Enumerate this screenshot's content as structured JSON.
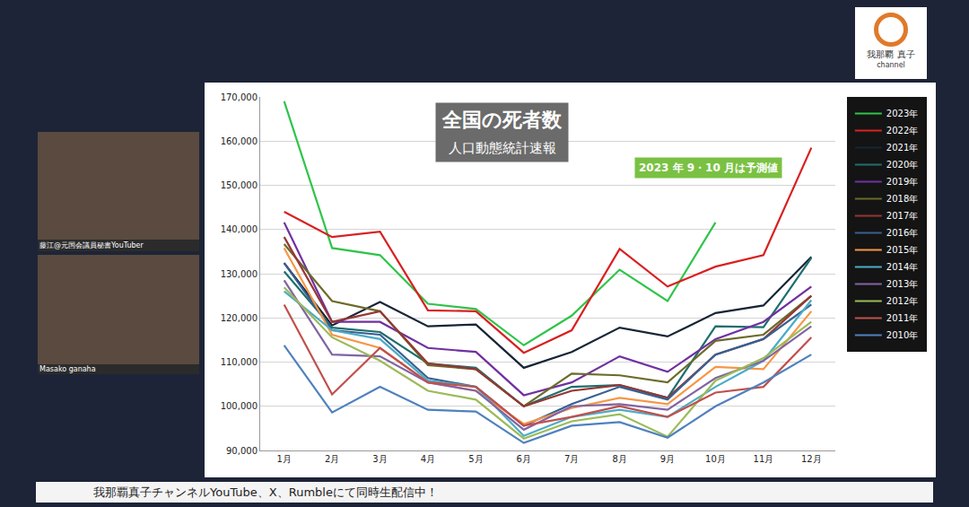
{
  "chart_data": {
    "type": "line",
    "title": "全国の死者数",
    "subtitle": "人口動態統計速報",
    "annotations": [
      "2023 年 9・10 月は予測値"
    ],
    "categories": [
      "1月",
      "2月",
      "3月",
      "4月",
      "5月",
      "6月",
      "7月",
      "8月",
      "9月",
      "10月",
      "11月",
      "12月"
    ],
    "series": [
      {
        "name": "2023年",
        "color": "#2fc44a",
        "values": [
          169000,
          135800,
          134200,
          123200,
          122000,
          113800,
          120500,
          130900,
          123800,
          141600,
          null,
          null
        ]
      },
      {
        "name": "2022年",
        "color": "#d92020",
        "values": [
          144000,
          138300,
          139500,
          121700,
          121500,
          112100,
          117200,
          135600,
          127100,
          131600,
          134200,
          158500
        ]
      },
      {
        "name": "2021年",
        "color": "#172536",
        "values": [
          132400,
          118300,
          123600,
          118100,
          118500,
          108700,
          112300,
          117800,
          115800,
          121100,
          122800,
          133800
        ]
      },
      {
        "name": "2020年",
        "color": "#1f6e6e",
        "values": [
          130500,
          117800,
          116800,
          109700,
          108700,
          100000,
          104400,
          104800,
          101900,
          118100,
          117900,
          133600
        ]
      },
      {
        "name": "2019年",
        "color": "#7030a0",
        "values": [
          141600,
          119100,
          119100,
          113200,
          112300,
          102500,
          105400,
          111300,
          107800,
          115200,
          119100,
          127100
        ]
      },
      {
        "name": "2018年",
        "color": "#6b6b2a",
        "values": [
          136700,
          123800,
          121500,
          109300,
          108400,
          100000,
          107400,
          107000,
          105400,
          114800,
          116200,
          125000
        ]
      },
      {
        "name": "2017年",
        "color": "#953735",
        "values": [
          138300,
          119100,
          121500,
          109700,
          108400,
          100000,
          103500,
          104800,
          101900,
          111700,
          115200,
          125000
        ]
      },
      {
        "name": "2016年",
        "color": "#376092",
        "values": [
          132400,
          117200,
          116200,
          106400,
          104400,
          95600,
          100500,
          104400,
          101500,
          111700,
          115200,
          123000
        ]
      },
      {
        "name": "2015年",
        "color": "#f79646",
        "values": [
          135800,
          116200,
          113200,
          105400,
          103500,
          96000,
          99600,
          101900,
          100500,
          108900,
          108400,
          121500
        ]
      },
      {
        "name": "2014年",
        "color": "#4bacc6",
        "values": [
          126000,
          117200,
          115200,
          105800,
          104400,
          93300,
          97600,
          99200,
          97600,
          104400,
          110300,
          124000
        ]
      },
      {
        "name": "2013年",
        "color": "#8064a2",
        "values": [
          128500,
          111700,
          111300,
          105400,
          103500,
          94700,
          100000,
          100500,
          99200,
          106400,
          110300,
          118100
        ]
      },
      {
        "name": "2012年",
        "color": "#9bbb59",
        "values": [
          126900,
          115600,
          110300,
          103500,
          101500,
          92700,
          96600,
          98200,
          93100,
          105800,
          110900,
          119100
        ]
      },
      {
        "name": "2011年",
        "color": "#c0504d",
        "values": [
          123000,
          102700,
          113200,
          105400,
          104400,
          95600,
          97600,
          100000,
          97600,
          103100,
          104400,
          115600
        ]
      },
      {
        "name": "2010年",
        "color": "#4f81bd",
        "values": [
          113800,
          98600,
          104400,
          99200,
          98800,
          91700,
          95600,
          96400,
          92900,
          100000,
          105400,
          111700
        ]
      }
    ],
    "ylim": [
      90000,
      170000
    ],
    "yticks": [
      {
        "value": 90000,
        "label": "90,000"
      },
      {
        "value": 100000,
        "label": "100,000"
      },
      {
        "value": 110000,
        "label": "110,000"
      },
      {
        "value": 120000,
        "label": "120,000"
      },
      {
        "value": 130000,
        "label": "130,000"
      },
      {
        "value": 140000,
        "label": "140,000"
      },
      {
        "value": 150000,
        "label": "150,000"
      },
      {
        "value": 160000,
        "label": "160,000"
      },
      {
        "value": 170000,
        "label": "170,000"
      }
    ],
    "grid": true,
    "legend": "right"
  },
  "overlay": {
    "logo": "我那覇 真子",
    "logo_sub": "channel",
    "speakers": [
      "藤江@元国会議員秘書YouTuber",
      "Masako ganaha"
    ],
    "banner": "我那覇真子チャンネルYouTube、X、Rumbleにて同時生配信中！"
  }
}
